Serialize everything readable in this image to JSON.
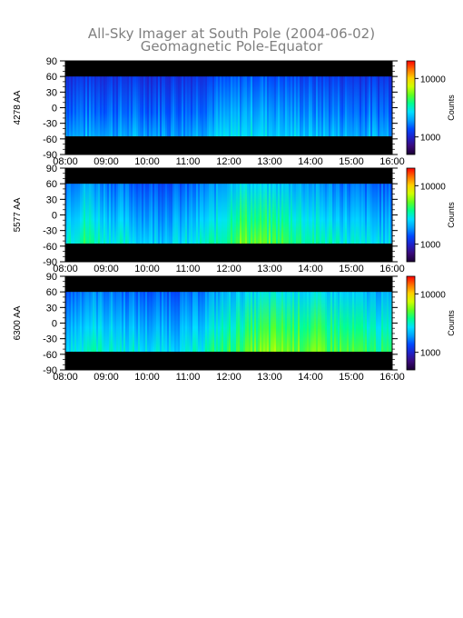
{
  "figure": {
    "title_line1": "All-Sky Imager at South Pole (2004-06-02)",
    "title_line2": "Geomagnetic Pole-Equator"
  },
  "chart_data": {
    "type": "heatmap",
    "x_axis": {
      "range": [
        "08:00",
        "16:00"
      ],
      "tick_labels": [
        "08:00",
        "09:00",
        "10:00",
        "11:00",
        "12:00",
        "13:00",
        "14:00",
        "15:00",
        "16:00"
      ]
    },
    "y_axis": {
      "range": [
        -90,
        90
      ],
      "tick_values": [
        90,
        60,
        30,
        0,
        -30,
        -60,
        -90
      ],
      "tick_labels": [
        "90",
        "60",
        "30",
        "0",
        "-30",
        "-60",
        "-90"
      ],
      "valid_range": [
        -55,
        60
      ]
    },
    "colorbar": {
      "label": "Counts",
      "scale": "log",
      "range": [
        500,
        20000
      ],
      "tick_values": [
        10000,
        1000
      ],
      "tick_labels": [
        "10000",
        "1000"
      ]
    },
    "panels": [
      {
        "label": "4278 AA",
        "profile": [
          {
            "t": 8.0,
            "level": 0.3
          },
          {
            "t": 9.0,
            "level": 0.3
          },
          {
            "t": 10.0,
            "level": 0.29
          },
          {
            "t": 11.0,
            "level": 0.3
          },
          {
            "t": 11.5,
            "level": 0.33
          },
          {
            "t": 12.0,
            "level": 0.35
          },
          {
            "t": 12.5,
            "level": 0.38
          },
          {
            "t": 13.0,
            "level": 0.36
          },
          {
            "t": 14.0,
            "level": 0.33
          },
          {
            "t": 15.0,
            "level": 0.31
          },
          {
            "t": 16.0,
            "level": 0.3
          }
        ]
      },
      {
        "label": "5577 AA",
        "profile": [
          {
            "t": 8.0,
            "level": 0.42
          },
          {
            "t": 8.5,
            "level": 0.48
          },
          {
            "t": 9.0,
            "level": 0.42
          },
          {
            "t": 10.0,
            "level": 0.36
          },
          {
            "t": 11.0,
            "level": 0.37
          },
          {
            "t": 11.75,
            "level": 0.45
          },
          {
            "t": 12.25,
            "level": 0.56
          },
          {
            "t": 12.75,
            "level": 0.54
          },
          {
            "t": 13.25,
            "level": 0.52
          },
          {
            "t": 14.0,
            "level": 0.46
          },
          {
            "t": 15.0,
            "level": 0.4
          },
          {
            "t": 16.0,
            "level": 0.36
          }
        ]
      },
      {
        "label": "6300 AA",
        "profile": [
          {
            "t": 8.0,
            "level": 0.36
          },
          {
            "t": 8.5,
            "level": 0.44
          },
          {
            "t": 9.0,
            "level": 0.42
          },
          {
            "t": 10.0,
            "level": 0.37
          },
          {
            "t": 11.0,
            "level": 0.38
          },
          {
            "t": 12.0,
            "level": 0.5
          },
          {
            "t": 13.0,
            "level": 0.58
          },
          {
            "t": 14.0,
            "level": 0.56
          },
          {
            "t": 15.0,
            "level": 0.52
          },
          {
            "t": 16.0,
            "level": 0.46
          }
        ]
      }
    ]
  },
  "colors": {
    "colormap": [
      "#1a0033",
      "#3a0a7a",
      "#2020c8",
      "#0048ff",
      "#00a0ff",
      "#00e0ff",
      "#00ff90",
      "#60ff20",
      "#d0ff00",
      "#ffd000",
      "#ff7000",
      "#ff0000"
    ],
    "no_data": "#000000",
    "title": "#7f7f7f"
  }
}
